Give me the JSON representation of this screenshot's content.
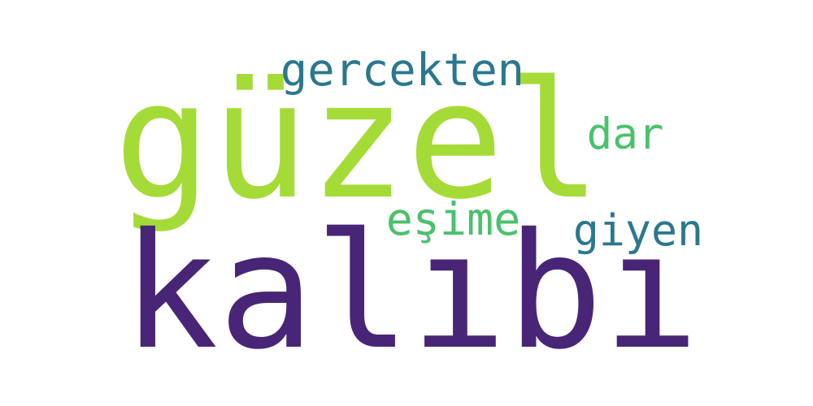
{
  "word_cloud": {
    "words": [
      {
        "text": "güzel",
        "color": "#a5db36"
      },
      {
        "text": "kalıbı",
        "color": "#482576"
      },
      {
        "text": "gercekten",
        "color": "#2a788e"
      },
      {
        "text": "dar",
        "color": "#4ac16d"
      },
      {
        "text": "eşime",
        "color": "#4ac16d"
      },
      {
        "text": "giyen",
        "color": "#2a788e"
      }
    ]
  }
}
